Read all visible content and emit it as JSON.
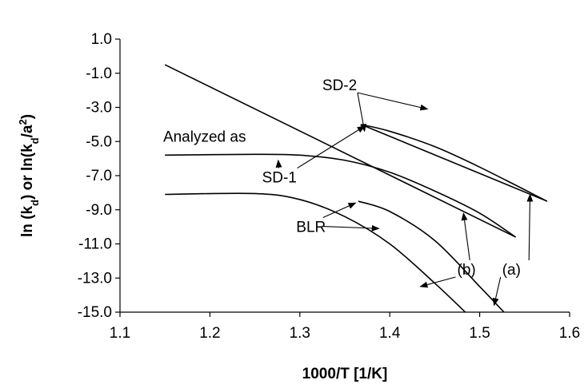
{
  "chart_data": {
    "type": "line",
    "xlabel": "1000/T [1/K]",
    "ylabel_parts": [
      "ln (k",
      "d",
      ") or ln(k",
      "d",
      "/a",
      "2",
      ")"
    ],
    "xlim": [
      1.1,
      1.6
    ],
    "ylim": [
      -15.0,
      1.0
    ],
    "xticks": [
      1.1,
      1.2,
      1.3,
      1.4,
      1.5,
      1.6
    ],
    "xtick_labels": [
      "1.1",
      "1.2",
      "1.3",
      "1.4",
      "1.5",
      "1.6"
    ],
    "yticks": [
      1.0,
      -1.0,
      -3.0,
      -5.0,
      -7.0,
      -9.0,
      -11.0,
      -13.0,
      -15.0
    ],
    "ytick_labels": [
      "1.0",
      "-1.0",
      "-3.0",
      "-5.0",
      "-7.0",
      "-9.0",
      "-11.0",
      "-13.0",
      "-15.0"
    ],
    "grid": false,
    "series": [
      {
        "x": [
          1.15,
          1.54
        ],
        "y": [
          -0.5,
          -10.6
        ]
      },
      {
        "x": [
          1.15,
          1.25,
          1.3,
          1.35,
          1.4,
          1.45,
          1.5,
          1.54
        ],
        "y": [
          -5.8,
          -5.75,
          -5.8,
          -6.1,
          -6.8,
          -7.9,
          -9.2,
          -10.6
        ]
      },
      {
        "x": [
          1.368,
          1.575
        ],
        "y": [
          -4.0,
          -8.5
        ]
      },
      {
        "x": [
          1.368,
          1.4,
          1.45,
          1.5,
          1.575
        ],
        "y": [
          -4.0,
          -4.4,
          -5.3,
          -6.5,
          -8.5
        ]
      },
      {
        "x": [
          1.15,
          1.25,
          1.3,
          1.35,
          1.4,
          1.45,
          1.484
        ],
        "y": [
          -8.1,
          -8.05,
          -8.4,
          -9.4,
          -11.0,
          -13.3,
          -15.0
        ]
      },
      {
        "x": [
          1.365,
          1.4,
          1.45,
          1.5,
          1.527
        ],
        "y": [
          -8.5,
          -9.1,
          -10.8,
          -13.5,
          -15.0
        ]
      }
    ],
    "annotations": [
      {
        "text": "SD-2",
        "x": 1.325,
        "y": -2.0,
        "arrows": [
          [
            1.442,
            -3.1
          ],
          [
            1.372,
            -4.4
          ]
        ]
      },
      {
        "text": "Analyzed as",
        "x": 1.148,
        "y": -5.0
      },
      {
        "text": "SD-1",
        "x": 1.258,
        "y": -7.4,
        "arrows": [
          [
            1.276,
            -6.1
          ],
          [
            1.372,
            -4.1
          ]
        ]
      },
      {
        "text": "BLR",
        "x": 1.296,
        "y": -10.3,
        "arrows": [
          [
            1.362,
            -8.6
          ],
          [
            1.388,
            -10.1
          ]
        ]
      },
      {
        "text": "(b)",
        "x": 1.475,
        "y": -12.8,
        "arrows": [
          [
            1.482,
            -9.2
          ],
          [
            1.434,
            -13.5
          ]
        ]
      },
      {
        "text": "(a)",
        "x": 1.525,
        "y": -12.8,
        "arrows": [
          [
            1.556,
            -8.1
          ],
          [
            1.516,
            -14.6
          ]
        ]
      }
    ]
  }
}
